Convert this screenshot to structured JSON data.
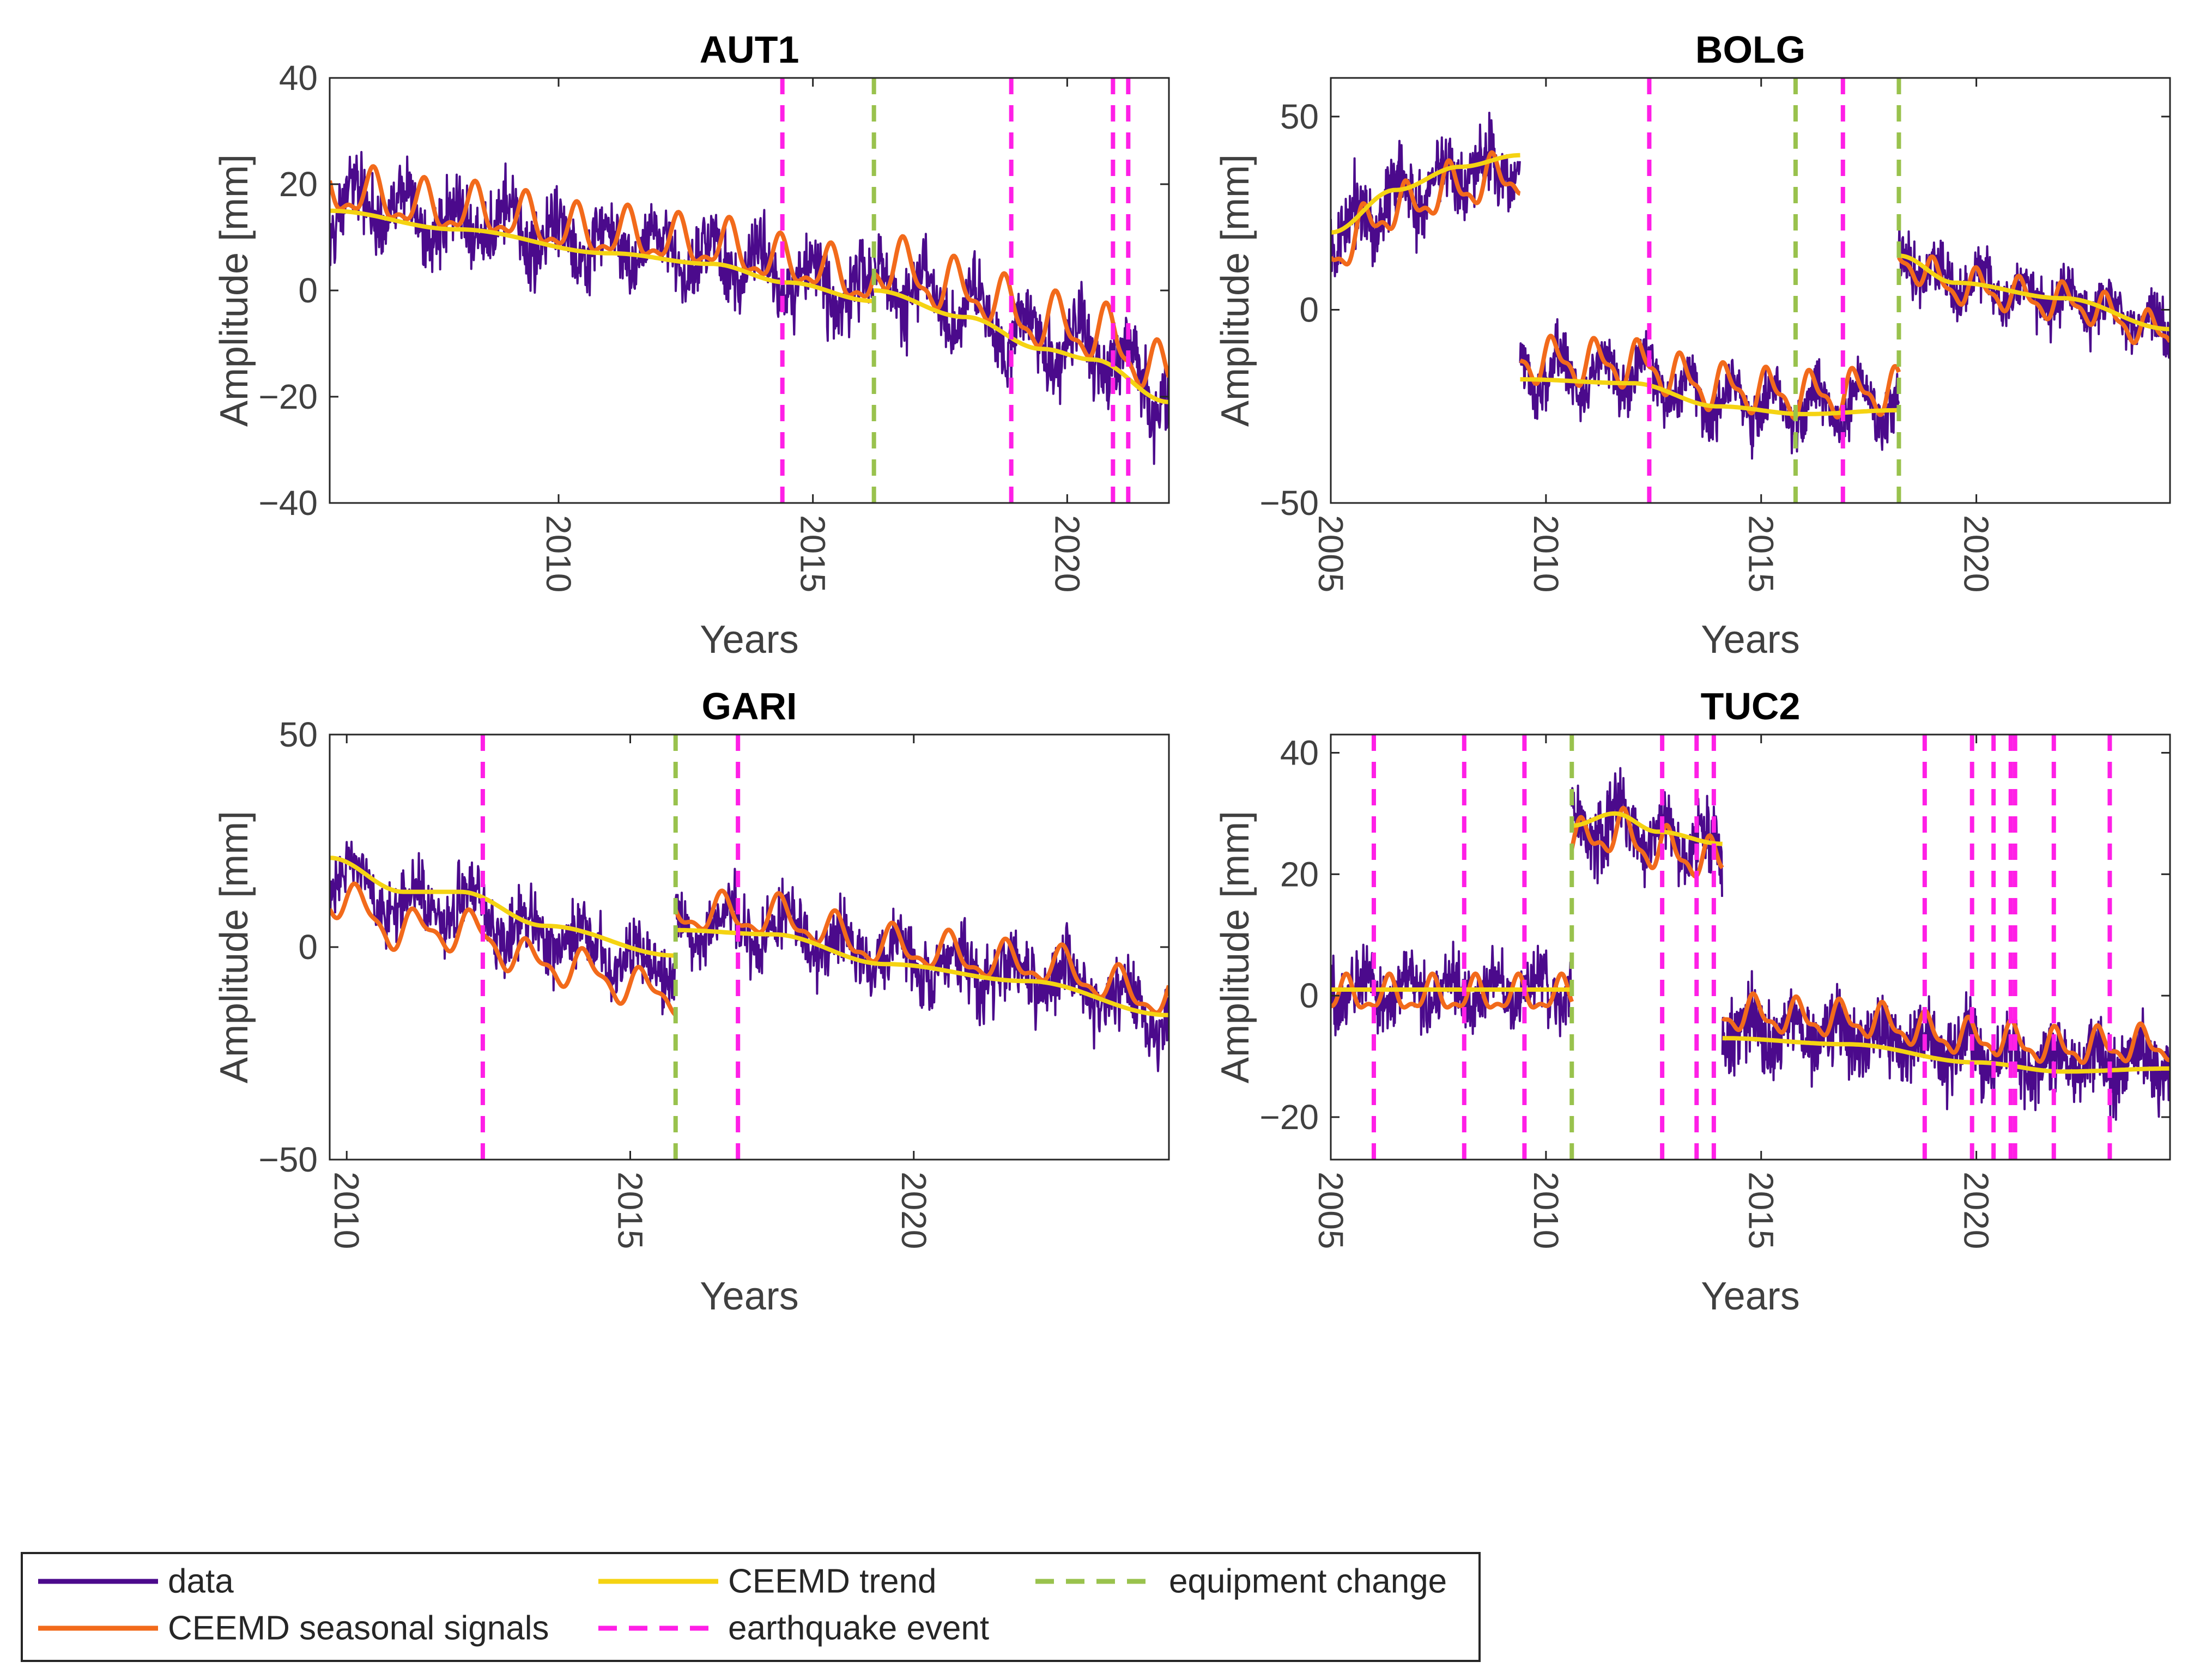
{
  "colors": {
    "data": "#4b0a8c",
    "seasonal": "#f26a1b",
    "trend": "#f5d312",
    "equipment": "#99c24d",
    "earthquake": "#ff1fe6",
    "axis": "#262626",
    "tick_text": "#404040"
  },
  "chart_data": [
    {
      "type": "line",
      "title": "AUT1",
      "xlabel": "Years",
      "ylabel": "Amplitude [mm]",
      "xlim": [
        2005.5,
        2022.0
      ],
      "ylim": [
        -40,
        40
      ],
      "xticks": [
        2010,
        2015,
        2020
      ],
      "xtick_labels": [
        "2010",
        "2015",
        "2020"
      ],
      "yticks": [
        -40,
        -20,
        0,
        20,
        40
      ],
      "ytick_labels": [
        "−40",
        "−20",
        "0",
        "20",
        "40"
      ],
      "grid": false,
      "segments": [
        {
          "start": 2005.5,
          "end": 2016.2,
          "trend": [
            [
              2005.5,
              15
            ],
            [
              2008,
              11.5
            ],
            [
              2011,
              7
            ],
            [
              2013,
              5
            ],
            [
              2014.5,
              1.5
            ],
            [
              2016.2,
              -2
            ]
          ],
          "seasonal_offset": 3.5,
          "seasonal_amp": 4,
          "noise": 6.5
        },
        {
          "start": 2016.2,
          "end": 2022.0,
          "trend": [
            [
              2016.2,
              0
            ],
            [
              2018,
              -5
            ],
            [
              2019.5,
              -11
            ],
            [
              2020.5,
              -13
            ],
            [
              2022.0,
              -21
            ]
          ],
          "seasonal_offset": 5,
          "seasonal_amp": 4.5,
          "noise": 7
        }
      ],
      "equipment_changes": [
        2016.2
      ],
      "earthquakes": [
        2014.4,
        2018.9,
        2020.9,
        2021.2
      ]
    },
    {
      "type": "line",
      "title": "BOLG",
      "xlabel": "Years",
      "ylabel": "Amplitude [mm]",
      "xlim": [
        2005.0,
        2024.5
      ],
      "ylim": [
        -50,
        60
      ],
      "xticks": [
        2005,
        2010,
        2015,
        2020
      ],
      "xtick_labels": [
        "2005",
        "2010",
        "2015",
        "2020"
      ],
      "yticks": [
        -50,
        0,
        50
      ],
      "ytick_labels": [
        "−50",
        "0",
        "50"
      ],
      "grid": false,
      "segments": [
        {
          "start": 2005.0,
          "end": 2009.4,
          "trend": [
            [
              2005.0,
              20
            ],
            [
              2006.5,
              31
            ],
            [
              2008,
              37
            ],
            [
              2009.4,
              40
            ]
          ],
          "seasonal_offset": -5,
          "seasonal_amp": 5,
          "noise": 9
        },
        {
          "start": 2009.4,
          "end": 2018.2,
          "trend": [
            [
              2009.4,
              -18
            ],
            [
              2012,
              -19
            ],
            [
              2014,
              -25
            ],
            [
              2016,
              -27
            ],
            [
              2018.2,
              -26
            ]
          ],
          "seasonal_offset": 5,
          "seasonal_amp": 5,
          "noise": 7
        },
        {
          "start": 2018.2,
          "end": 2024.5,
          "trend": [
            [
              2018.2,
              14
            ],
            [
              2019.5,
              7
            ],
            [
              2022,
              3
            ],
            [
              2024.5,
              -5
            ]
          ],
          "seasonal_offset": -1,
          "seasonal_amp": 4,
          "noise": 7
        }
      ],
      "equipment_changes": [
        2015.8,
        2018.2
      ],
      "earthquakes": [
        2012.4,
        2016.9
      ]
    },
    {
      "type": "line",
      "title": "GARI",
      "xlabel": "Years",
      "ylabel": "Amplitude [mm]",
      "xlim": [
        2009.7,
        2024.5
      ],
      "ylim": [
        -50,
        50
      ],
      "xticks": [
        2010,
        2015,
        2020
      ],
      "xtick_labels": [
        "2010",
        "2015",
        "2020"
      ],
      "yticks": [
        -50,
        0,
        50
      ],
      "ytick_labels": [
        "−50",
        "0",
        "50"
      ],
      "grid": false,
      "segments": [
        {
          "start": 2009.7,
          "end": 2015.8,
          "trend": [
            [
              2009.7,
              21
            ],
            [
              2011,
              13
            ],
            [
              2012,
              13
            ],
            [
              2013.5,
              5
            ],
            [
              2015.8,
              -2
            ]
          ],
          "seasonal_offset": -9,
          "seasonal_amp": 4,
          "noise": 8
        },
        {
          "start": 2015.8,
          "end": 2024.5,
          "trend": [
            [
              2015.8,
              4
            ],
            [
              2017.5,
              3
            ],
            [
              2019.5,
              -4
            ],
            [
              2022,
              -8
            ],
            [
              2024.5,
              -16
            ]
          ],
          "seasonal_offset": 4,
          "seasonal_amp": 4,
          "noise": 8
        }
      ],
      "equipment_changes": [
        2015.8
      ],
      "earthquakes": [
        2012.4,
        2016.9
      ]
    },
    {
      "type": "line",
      "title": "TUC2",
      "xlabel": "Years",
      "ylabel": "Amplitude [mm]",
      "xlim": [
        2005.0,
        2024.5
      ],
      "ylim": [
        -27,
        43
      ],
      "xticks": [
        2005,
        2010,
        2015,
        2020
      ],
      "xtick_labels": [
        "2005",
        "2010",
        "2015",
        "2020"
      ],
      "yticks": [
        -20,
        0,
        20,
        40
      ],
      "ytick_labels": [
        "−20",
        "0",
        "20",
        "40"
      ],
      "grid": false,
      "segments": [
        {
          "start": 2005.0,
          "end": 2010.6,
          "trend": [
            [
              2005.0,
              1
            ],
            [
              2010.6,
              1
            ]
          ],
          "seasonal_offset": -1,
          "seasonal_amp": 2.5,
          "noise": 5
        },
        {
          "start": 2010.6,
          "end": 2014.1,
          "trend": [
            [
              2010.6,
              28
            ],
            [
              2011.6,
              30
            ],
            [
              2012.6,
              27
            ],
            [
              2014.1,
              25
            ]
          ],
          "seasonal_offset": -3,
          "seasonal_amp": 3,
          "noise": 6
        },
        {
          "start": 2014.1,
          "end": 2024.5,
          "trend": [
            [
              2014.1,
              -7
            ],
            [
              2017,
              -8
            ],
            [
              2020,
              -11
            ],
            [
              2022,
              -12.5
            ],
            [
              2024.5,
              -12
            ]
          ],
          "seasonal_offset": 4,
          "seasonal_amp": 2.5,
          "noise": 6
        }
      ],
      "equipment_changes": [
        2010.6
      ],
      "earthquakes": [
        2006.0,
        2008.1,
        2009.5,
        2012.7,
        2013.5,
        2013.9,
        2018.8,
        2019.9,
        2020.4,
        2020.8,
        2020.9,
        2021.8,
        2023.1
      ]
    }
  ],
  "legend": {
    "placement": "bottom-left",
    "items": [
      {
        "key": "data",
        "label": "data",
        "style": "solid"
      },
      {
        "key": "seasonal",
        "label": "CEEMD seasonal signals",
        "style": "solid"
      },
      {
        "key": "trend",
        "label": "CEEMD trend",
        "style": "solid"
      },
      {
        "key": "earthquake",
        "label": "earthquake event",
        "style": "dashed"
      },
      {
        "key": "equipment",
        "label": "equipment change",
        "style": "dashed"
      }
    ]
  }
}
